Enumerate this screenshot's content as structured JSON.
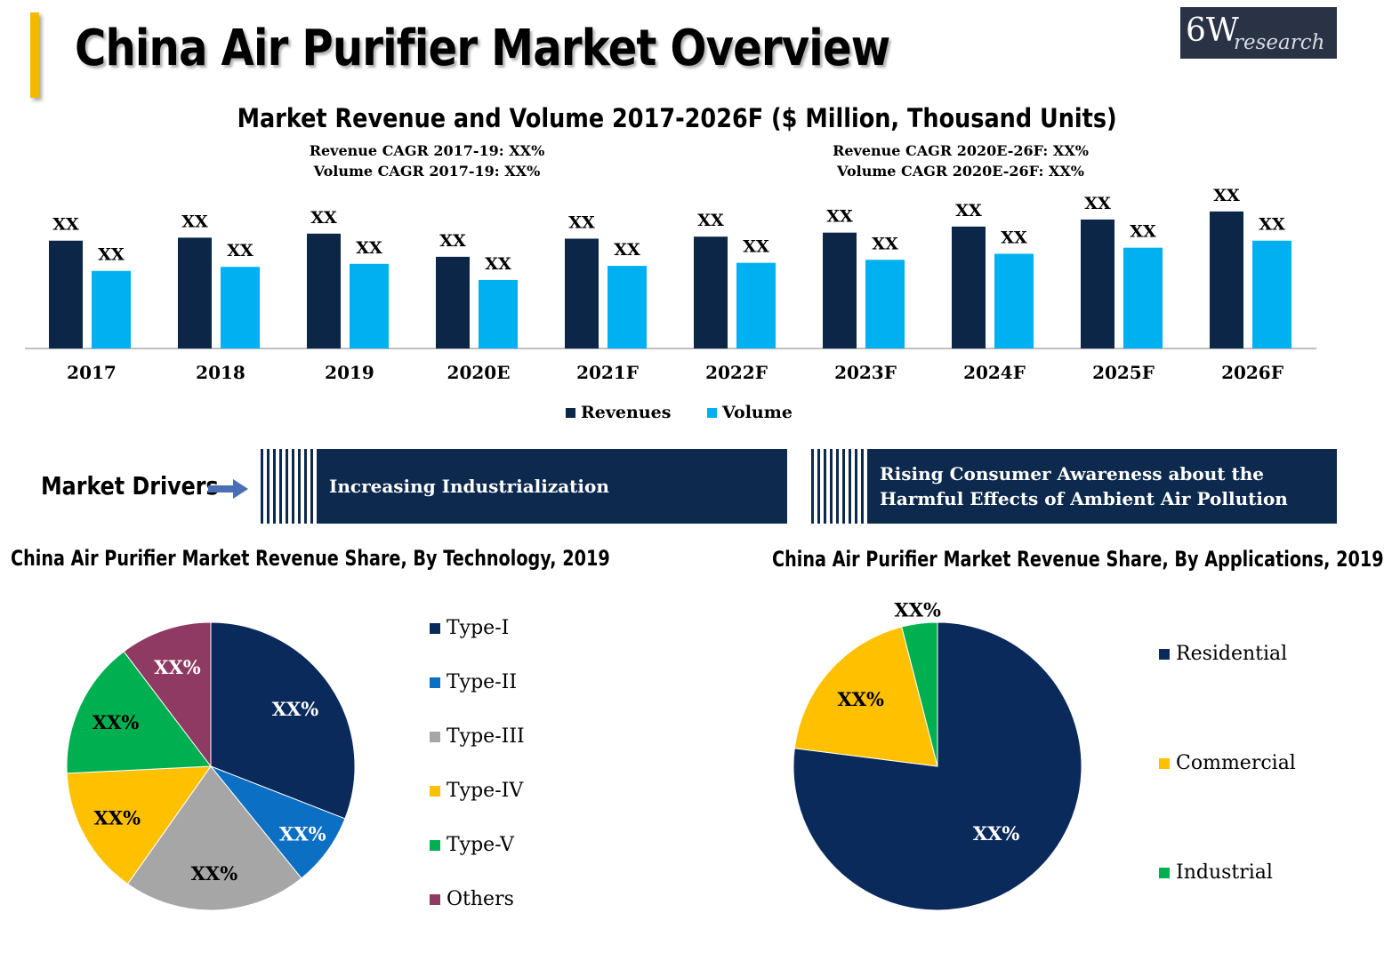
{
  "header": {
    "title": "China Air Purifier Market Overview",
    "logo_big": "6W",
    "logo_small": "research"
  },
  "cagr": {
    "left_line1": "Revenue CAGR 2017-19: XX%",
    "left_line2": "Volume CAGR 2017-19: XX%",
    "right_line1": "Revenue CAGR 2020E-26F: XX%",
    "right_line2": "Volume CAGR 2020E-26F: XX%"
  },
  "drivers": {
    "label": "Market Drivers",
    "box1": "Increasing Industrialization",
    "box2_line1": "Rising  Consumer Awareness about the",
    "box2_line2": "Harmful Effects of Ambient Air Pollution"
  },
  "colors": {
    "revenue": "#0b2647",
    "volume": "#00b0f0",
    "type1": "#0b2a5c",
    "type2": "#0b6fc4",
    "type3": "#a6a6a6",
    "type4": "#ffc000",
    "type5": "#00b050",
    "others": "#8e3a62",
    "residential": "#0b2a5c",
    "commercial": "#ffc000",
    "industrial": "#00b050"
  },
  "chart_data": [
    {
      "type": "bar",
      "title": "Market Revenue and Volume 2017-2026F ($ Million, Thousand Units)",
      "categories": [
        "2017",
        "2018",
        "2019",
        "2020E",
        "2021F",
        "2022F",
        "2023F",
        "2024F",
        "2025F",
        "2026F"
      ],
      "series": [
        {
          "name": "Revenues",
          "values": [
            107,
            110,
            114,
            91,
            109,
            111,
            115,
            121,
            128,
            136
          ],
          "labels": [
            "XX",
            "XX",
            "XX",
            "XX",
            "XX",
            "XX",
            "XX",
            "XX",
            "XX",
            "XX"
          ]
        },
        {
          "name": "Volume",
          "values": [
            77,
            81,
            84,
            68,
            82,
            85,
            88,
            94,
            100,
            107
          ],
          "labels": [
            "XX",
            "XX",
            "XX",
            "XX",
            "XX",
            "XX",
            "XX",
            "XX",
            "XX",
            "XX"
          ]
        }
      ],
      "ylim": [
        0,
        150
      ],
      "legend": "bottom",
      "grid": false
    },
    {
      "type": "pie",
      "title": "China Air Purifier Market Revenue Share, By Technology, 2019",
      "categories": [
        "Type-I",
        "Type-II",
        "Type-III",
        "Type-IV",
        "Type-V",
        "Others"
      ],
      "values": [
        30,
        8,
        20,
        14,
        15,
        10
      ],
      "labels": [
        "XX%",
        "XX%",
        "XX%",
        "XX%",
        "XX%",
        "XX%"
      ],
      "legend": "right"
    },
    {
      "type": "pie",
      "title": "China Air Purifier Market Revenue Share, By Applications, 2019",
      "categories": [
        "Residential",
        "Commercial",
        "Industrial"
      ],
      "values": [
        77,
        19,
        4
      ],
      "labels": [
        "XX%",
        "XX%",
        "XX%"
      ],
      "legend": "right"
    }
  ]
}
